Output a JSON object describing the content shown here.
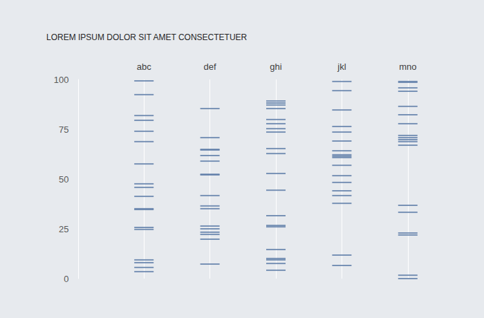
{
  "chart_data": {
    "type": "scatter",
    "title": "LOREM IPSUM DOLOR SIT AMET CONSECTETUER",
    "categories": [
      "abc",
      "def",
      "ghi",
      "jkl",
      "mno"
    ],
    "values": [
      [
        99.3,
        92.4,
        81.9,
        79.5,
        74.0,
        68.8,
        57.6,
        47.6,
        45.8,
        41.3,
        35.1,
        34.7,
        25.7,
        24.7,
        9.4,
        8.0,
        5.6,
        3.5
      ],
      [
        85.4,
        70.8,
        64.9,
        64.6,
        61.8,
        59.0,
        52.4,
        52.1,
        41.7,
        36.5,
        35.1,
        26.4,
        25.0,
        23.3,
        22.2,
        19.8,
        7.3
      ],
      [
        89.2,
        88.2,
        87.2,
        85.4,
        79.9,
        77.8,
        75.3,
        73.6,
        65.3,
        62.8,
        52.8,
        44.4,
        31.6,
        26.7,
        26.0,
        14.6,
        10.1,
        9.4,
        7.6,
        4.2
      ],
      [
        99.0,
        94.4,
        84.7,
        76.4,
        73.6,
        69.1,
        64.2,
        62.2,
        61.5,
        60.8,
        56.9,
        51.7,
        48.3,
        44.1,
        41.7,
        37.8,
        11.8,
        6.6
      ],
      [
        99.0,
        98.6,
        95.8,
        94.1,
        86.5,
        82.3,
        77.8,
        71.9,
        70.8,
        69.8,
        68.8,
        67.0,
        36.8,
        33.3,
        22.9,
        21.9,
        1.7,
        0
      ]
    ],
    "color": "#5b7ba6",
    "marker": "dash",
    "ylim": [
      0,
      100
    ],
    "yticks": [
      0,
      25,
      50,
      75,
      100
    ],
    "grid": false
  }
}
